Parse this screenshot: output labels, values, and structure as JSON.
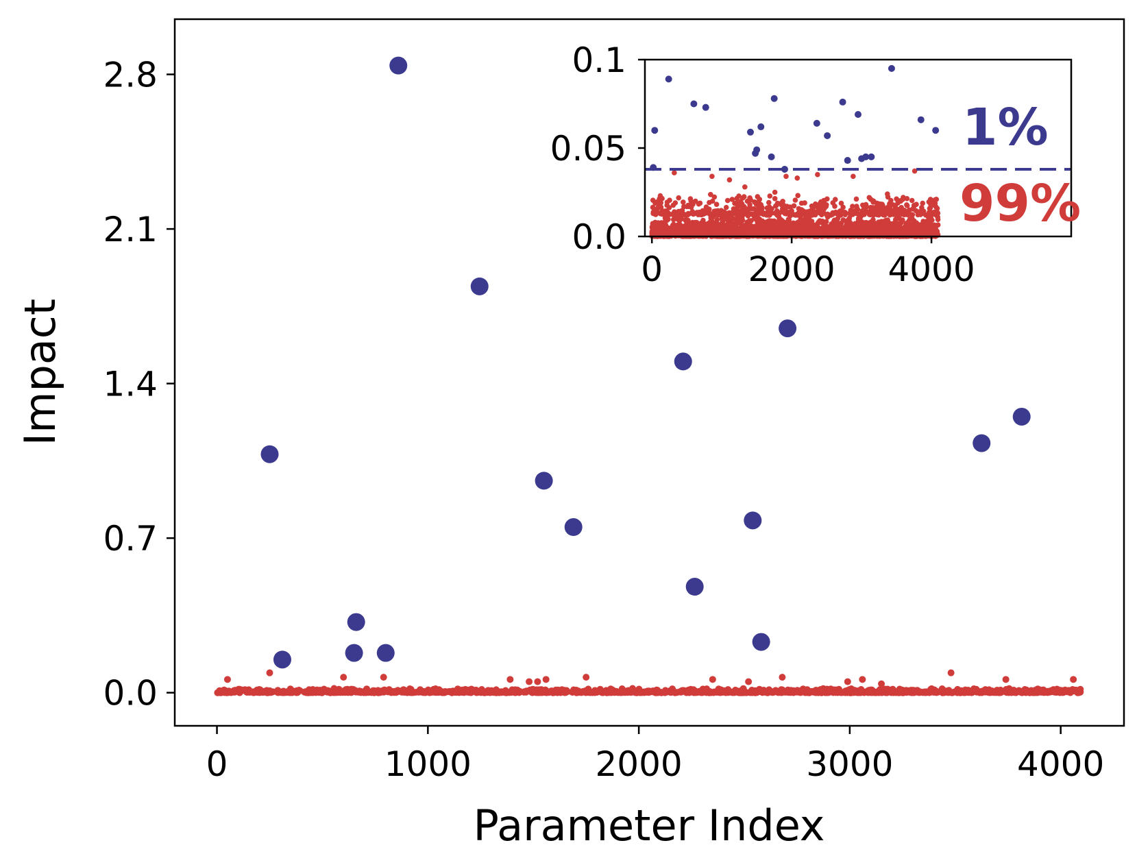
{
  "chart_data": [
    {
      "type": "scatter",
      "title": "",
      "xlabel": "Parameter Index",
      "ylabel": "Impact",
      "xlim": [
        -200,
        4300
      ],
      "ylim": [
        -0.15,
        3.05
      ],
      "xticks": [
        0,
        1000,
        2000,
        3000,
        4000
      ],
      "xtick_labels": [
        "0",
        "1000",
        "2000",
        "3000",
        "4000"
      ],
      "yticks": [
        0.0,
        0.7,
        1.4,
        2.1,
        2.8
      ],
      "ytick_labels": [
        "0.0",
        "0.7",
        "1.4",
        "2.1",
        "2.8"
      ],
      "grid": false,
      "colors": {
        "top": "#3b3a8f",
        "rest": "#d03c3a"
      },
      "series": [
        {
          "x": [
            860,
            1245,
            2705,
            2210,
            3815,
            250,
            3625,
            1550,
            2540,
            1690,
            2265,
            660,
            2580,
            800,
            650,
            310
          ],
          "y": [
            2.84,
            1.84,
            1.65,
            1.5,
            1.25,
            1.08,
            1.13,
            0.96,
            0.78,
            0.75,
            0.48,
            0.32,
            0.23,
            0.18,
            0.18,
            0.15
          ]
        },
        {
          "baseline": {
            "x_range": [
              0,
              4096
            ],
            "y_max": 0.02
          },
          "x": [
            50,
            250,
            600,
            790,
            1390,
            1480,
            1520,
            1560,
            1750,
            2350,
            2520,
            2680,
            2990,
            3060,
            3150,
            3480,
            3740,
            4060
          ],
          "y": [
            0.06,
            0.09,
            0.07,
            0.07,
            0.06,
            0.05,
            0.05,
            0.06,
            0.07,
            0.06,
            0.05,
            0.07,
            0.05,
            0.06,
            0.04,
            0.09,
            0.06,
            0.06
          ]
        }
      ]
    },
    {
      "type": "scatter",
      "title": "",
      "xlabel": "",
      "ylabel": "",
      "xlim": [
        -100,
        6000
      ],
      "ylim": [
        0.0,
        0.1
      ],
      "xticks": [
        0,
        2000,
        4000
      ],
      "xtick_labels": [
        "0",
        "2000",
        "4000"
      ],
      "yticks": [
        0.0,
        0.05,
        0.1
      ],
      "ytick_labels": [
        "0.0",
        "0.05",
        "0.1"
      ],
      "threshold": 0.038,
      "annotations": {
        "top_pct": "1%",
        "rest_pct": "99%"
      },
      "series": [
        {
          "x": [
            40,
            240,
            600,
            770,
            20,
            1410,
            1560,
            1750,
            2360,
            2510,
            2730,
            2950,
            3430,
            3850,
            4060,
            1480,
            1500,
            1710,
            1900,
            2800,
            3000,
            3060,
            3140
          ],
          "y": [
            0.06,
            0.089,
            0.075,
            0.073,
            0.039,
            0.059,
            0.062,
            0.078,
            0.064,
            0.057,
            0.076,
            0.069,
            0.095,
            0.066,
            0.06,
            0.047,
            0.049,
            0.045,
            0.038,
            0.043,
            0.044,
            0.045,
            0.045
          ]
        },
        {
          "baseline": {
            "x_range": [
              0,
              4096
            ],
            "y_max": 0.012
          },
          "x": [
            120,
            320,
            560,
            860,
            1110,
            1330,
            1540,
            1760,
            1920,
            2080,
            2370,
            2590,
            2880,
            3110,
            3370,
            3560,
            3760,
            3990,
            4070
          ],
          "y": [
            0.023,
            0.036,
            0.02,
            0.034,
            0.032,
            0.028,
            0.021,
            0.025,
            0.034,
            0.033,
            0.035,
            0.019,
            0.034,
            0.022,
            0.024,
            0.02,
            0.037,
            0.018,
            0.021
          ]
        }
      ]
    }
  ]
}
